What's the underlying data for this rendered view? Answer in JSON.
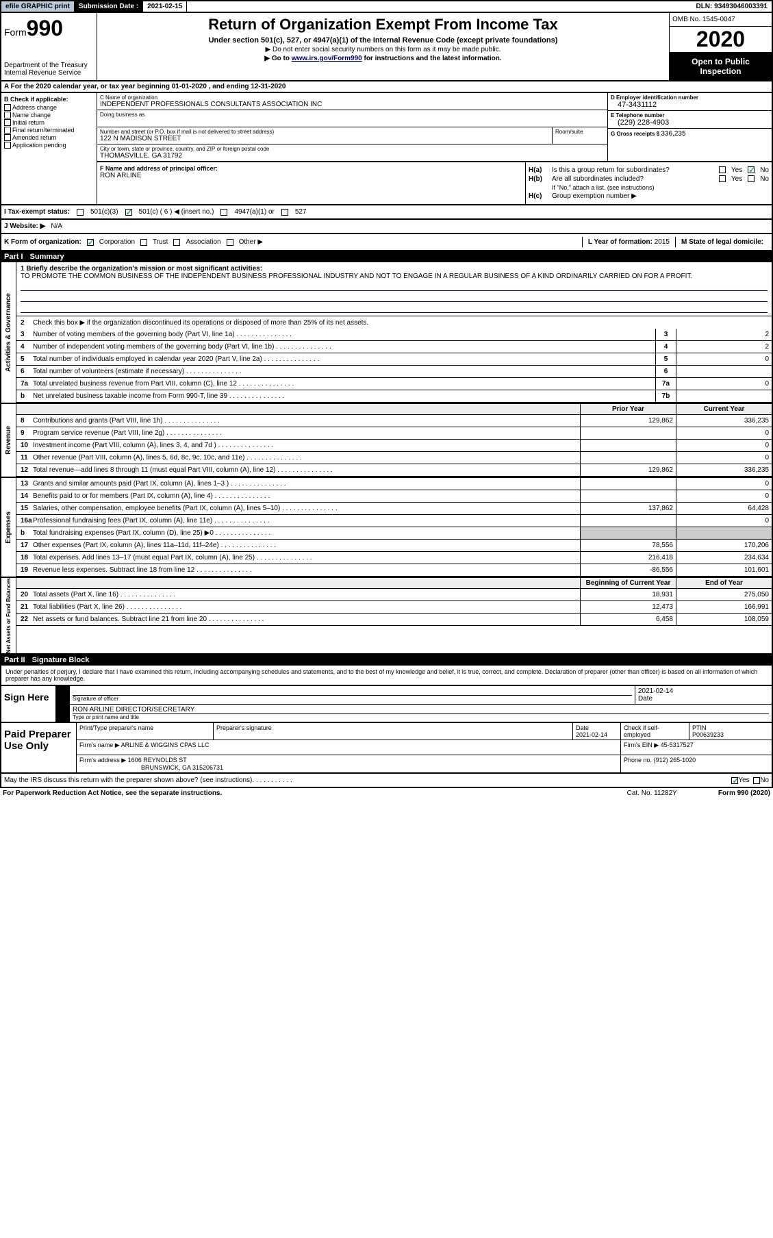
{
  "top": {
    "efile": "efile GRAPHIC print",
    "sub_label": "Submission Date :",
    "sub_date": "2021-02-15",
    "dln": "DLN: 93493046003391"
  },
  "header": {
    "form": "Form",
    "form_num": "990",
    "dept": "Department of the Treasury Internal Revenue Service",
    "title": "Return of Organization Exempt From Income Tax",
    "sub1": "Under section 501(c), 527, or 4947(a)(1) of the Internal Revenue Code (except private foundations)",
    "sub2": "▶ Do not enter social security numbers on this form as it may be made public.",
    "sub3_pre": "▶ Go to ",
    "sub3_link": "www.irs.gov/Form990",
    "sub3_post": " for instructions and the latest information.",
    "omb": "OMB No. 1545-0047",
    "year": "2020",
    "open": "Open to Public Inspection"
  },
  "section_a": "A  For the 2020 calendar year, or tax year beginning 01-01-2020    , and ending 12-31-2020",
  "b": {
    "hdr": "B Check if applicable:",
    "items": [
      "Address change",
      "Name change",
      "Initial return",
      "Final return/terminated",
      "Amended return",
      "Application pending"
    ]
  },
  "c": {
    "name_lbl": "C Name of organization",
    "name": "INDEPENDENT PROFESSIONALS CONSULTANTS ASSOCIATION INC",
    "dba_lbl": "Doing business as",
    "addr_lbl": "Number and street (or P.O. box if mail is not delivered to street address)",
    "addr": "122 N MADISON STREET",
    "room_lbl": "Room/suite",
    "city_lbl": "City or town, state or province, country, and ZIP or foreign postal code",
    "city": "THOMASVILLE, GA  31792"
  },
  "d": {
    "lbl": "D Employer identification number",
    "val": "47-3431112"
  },
  "e": {
    "lbl": "E Telephone number",
    "val": "(229) 228-4903"
  },
  "g": {
    "lbl": "G Gross receipts $ ",
    "val": "336,235"
  },
  "f": {
    "lbl": "F  Name and address of principal officer:",
    "val": "RON ARLINE"
  },
  "h": {
    "a_lbl": "H(a)",
    "a_txt": "Is this a group return for subordinates?",
    "b_lbl": "H(b)",
    "b_txt": "Are all subordinates included?",
    "b_note": "If \"No,\" attach a list. (see instructions)",
    "c_lbl": "H(c)",
    "c_txt": "Group exemption number ▶"
  },
  "i": {
    "lbl": "I  Tax-exempt status:",
    "opts": [
      "501(c)(3)",
      "501(c) ( 6 ) ◀ (insert no.)",
      "4947(a)(1) or",
      "527"
    ]
  },
  "j": {
    "lbl": "J  Website: ▶",
    "val": "N/A"
  },
  "k": {
    "lbl": "K Form of organization:",
    "opts": [
      "Corporation",
      "Trust",
      "Association",
      "Other ▶"
    ],
    "l_lbl": "L Year of formation:",
    "l_val": "2015",
    "m_lbl": "M State of legal domicile:"
  },
  "part1": {
    "num": "Part I",
    "title": "Summary",
    "mission_lbl": "1  Briefly describe the organization's mission or most significant activities:",
    "mission": "TO PROMOTE THE COMMON BUSINESS OF THE INDEPENDENT BUSINESS PROFESSIONAL INDUSTRY AND NOT TO ENGAGE IN A REGULAR BUSINESS OF A KIND ORDINARILY CARRIED ON FOR A PROFIT.",
    "line2": "Check this box ▶     if the organization discontinued its operations or disposed of more than 25% of its net assets.",
    "gov": [
      {
        "n": "3",
        "t": "Number of voting members of the governing body (Part VI, line 1a)",
        "b": "3",
        "v": "2"
      },
      {
        "n": "4",
        "t": "Number of independent voting members of the governing body (Part VI, line 1b)",
        "b": "4",
        "v": "2"
      },
      {
        "n": "5",
        "t": "Total number of individuals employed in calendar year 2020 (Part V, line 2a)",
        "b": "5",
        "v": "0"
      },
      {
        "n": "6",
        "t": "Total number of volunteers (estimate if necessary)",
        "b": "6",
        "v": ""
      },
      {
        "n": "7a",
        "t": "Total unrelated business revenue from Part VIII, column (C), line 12",
        "b": "7a",
        "v": "0"
      },
      {
        "n": "b",
        "t": "Net unrelated business taxable income from Form 990-T, line 39",
        "b": "7b",
        "v": ""
      }
    ],
    "prior_hdr": "Prior Year",
    "curr_hdr": "Current Year",
    "rev": [
      {
        "n": "8",
        "t": "Contributions and grants (Part VIII, line 1h)",
        "p": "129,862",
        "c": "336,235"
      },
      {
        "n": "9",
        "t": "Program service revenue (Part VIII, line 2g)",
        "p": "",
        "c": "0"
      },
      {
        "n": "10",
        "t": "Investment income (Part VIII, column (A), lines 3, 4, and 7d )",
        "p": "",
        "c": "0"
      },
      {
        "n": "11",
        "t": "Other revenue (Part VIII, column (A), lines 5, 6d, 8c, 9c, 10c, and 11e)",
        "p": "",
        "c": "0"
      },
      {
        "n": "12",
        "t": "Total revenue—add lines 8 through 11 (must equal Part VIII, column (A), line 12)",
        "p": "129,862",
        "c": "336,235"
      }
    ],
    "exp": [
      {
        "n": "13",
        "t": "Grants and similar amounts paid (Part IX, column (A), lines 1–3 )",
        "p": "",
        "c": "0"
      },
      {
        "n": "14",
        "t": "Benefits paid to or for members (Part IX, column (A), line 4)",
        "p": "",
        "c": "0"
      },
      {
        "n": "15",
        "t": "Salaries, other compensation, employee benefits (Part IX, column (A), lines 5–10)",
        "p": "137,862",
        "c": "64,428"
      },
      {
        "n": "16a",
        "t": "Professional fundraising fees (Part IX, column (A), line 11e)",
        "p": "",
        "c": "0"
      },
      {
        "n": "b",
        "t": "Total fundraising expenses (Part IX, column (D), line 25) ▶0",
        "p": "shaded",
        "c": "shaded"
      },
      {
        "n": "17",
        "t": "Other expenses (Part IX, column (A), lines 11a–11d, 11f–24e)",
        "p": "78,556",
        "c": "170,206"
      },
      {
        "n": "18",
        "t": "Total expenses. Add lines 13–17 (must equal Part IX, column (A), line 25)",
        "p": "216,418",
        "c": "234,634"
      },
      {
        "n": "19",
        "t": "Revenue less expenses. Subtract line 18 from line 12",
        "p": "-86,556",
        "c": "101,601"
      }
    ],
    "bal_hdr_p": "Beginning of Current Year",
    "bal_hdr_c": "End of Year",
    "bal": [
      {
        "n": "20",
        "t": "Total assets (Part X, line 16)",
        "p": "18,931",
        "c": "275,050"
      },
      {
        "n": "21",
        "t": "Total liabilities (Part X, line 26)",
        "p": "12,473",
        "c": "166,991"
      },
      {
        "n": "22",
        "t": "Net assets or fund balances. Subtract line 21 from line 20",
        "p": "6,458",
        "c": "108,059"
      }
    ]
  },
  "part2": {
    "num": "Part II",
    "title": "Signature Block",
    "intro": "Under penalties of perjury, I declare that I have examined this return, including accompanying schedules and statements, and to the best of my knowledge and belief, it is true, correct, and complete. Declaration of preparer (other than officer) is based on all information of which preparer has any knowledge.",
    "sign_here": "Sign Here",
    "sig_lbl": "Signature of officer",
    "date_lbl": "Date",
    "date_val": "2021-02-14",
    "name_val": "RON ARLINE  DIRECTOR/SECRETARY",
    "name_lbl": "Type or print name and title",
    "paid_lbl": "Paid Preparer Use Only",
    "prep_name_lbl": "Print/Type preparer's name",
    "prep_sig_lbl": "Preparer's signature",
    "prep_date_lbl": "Date",
    "prep_date": "2021-02-14",
    "self_emp": "Check      if self-employed",
    "ptin_lbl": "PTIN",
    "ptin": "P00639233",
    "firm_name_lbl": "Firm's name    ▶",
    "firm_name": "ARLINE & WIGGINS CPAS LLC",
    "firm_ein_lbl": "Firm's EIN ▶",
    "firm_ein": "45-5317527",
    "firm_addr_lbl": "Firm's address ▶",
    "firm_addr1": "1606 REYNOLDS ST",
    "firm_addr2": "BRUNSWICK, GA  315206731",
    "phone_lbl": "Phone no.",
    "phone": "(912) 265-1020",
    "discuss": "May the IRS discuss this return with the preparer shown above? (see instructions)",
    "footer_l": "For Paperwork Reduction Act Notice, see the separate instructions.",
    "footer_c": "Cat. No. 11282Y",
    "footer_r": "Form 990 (2020)"
  }
}
